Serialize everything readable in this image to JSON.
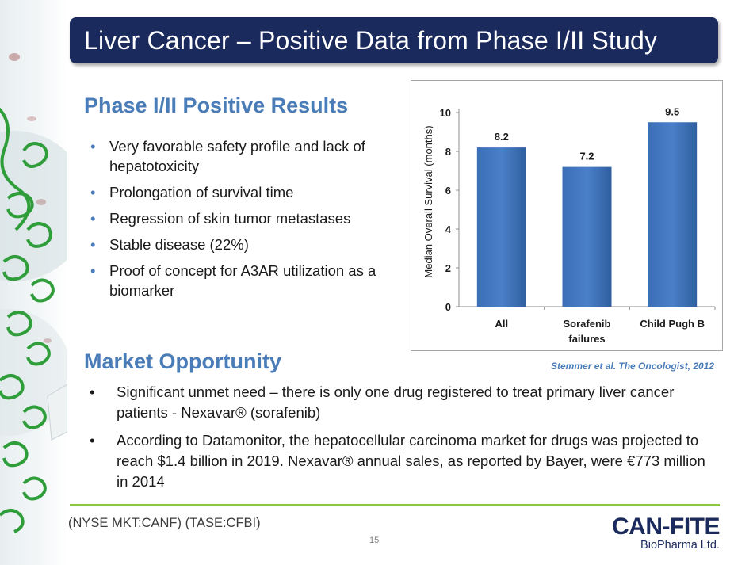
{
  "slide": {
    "title": "Liver Cancer – Positive Data from Phase I/II Study",
    "page_number": "15"
  },
  "results": {
    "heading": "Phase I/II Positive Results",
    "bullets": [
      "Very favorable safety profile and lack of hepatotoxicity",
      "Prolongation of survival time",
      "Regression of skin tumor metastases",
      "Stable disease (22%)",
      "Proof of concept for A3AR utilization as a biomarker"
    ]
  },
  "market": {
    "heading": "Market Opportunity",
    "bullets": [
      "Significant unmet need – there is only one drug registered to treat primary liver cancer patients - Nexavar® (sorafenib)",
      "According to Datamonitor, the hepatocellular carcinoma market for drugs was projected to reach $1.4 billion in 2019. Nexavar® annual sales, as reported by Bayer, were €773 million in 2014"
    ]
  },
  "citation": "Stemmer et al. The Oncologist, 2012",
  "footer": {
    "ticker": "(NYSE MKT:CANF)  (TASE:CFBI)",
    "logo_main": "CAN-FITE",
    "logo_sub": "BioPharma Ltd."
  },
  "colors": {
    "title_bar": "#1b2a5c",
    "heading": "#4a7cb8",
    "bar": "#3b6fb6",
    "footer_rule": "#8dc63f"
  },
  "chart_data": {
    "type": "bar",
    "categories": [
      [
        "All"
      ],
      [
        "Sorafenib",
        "failures"
      ],
      [
        "Child Pugh B"
      ]
    ],
    "values": [
      8.2,
      7.2,
      9.5
    ],
    "data_labels": [
      "8.2",
      "7.2",
      "9.5"
    ],
    "ylabel": "Median Overall Survival (months)",
    "ylim": [
      0,
      10
    ],
    "yticks": [
      "0",
      "2",
      "4",
      "6",
      "8",
      "10"
    ],
    "grid": false,
    "legend": "none"
  }
}
